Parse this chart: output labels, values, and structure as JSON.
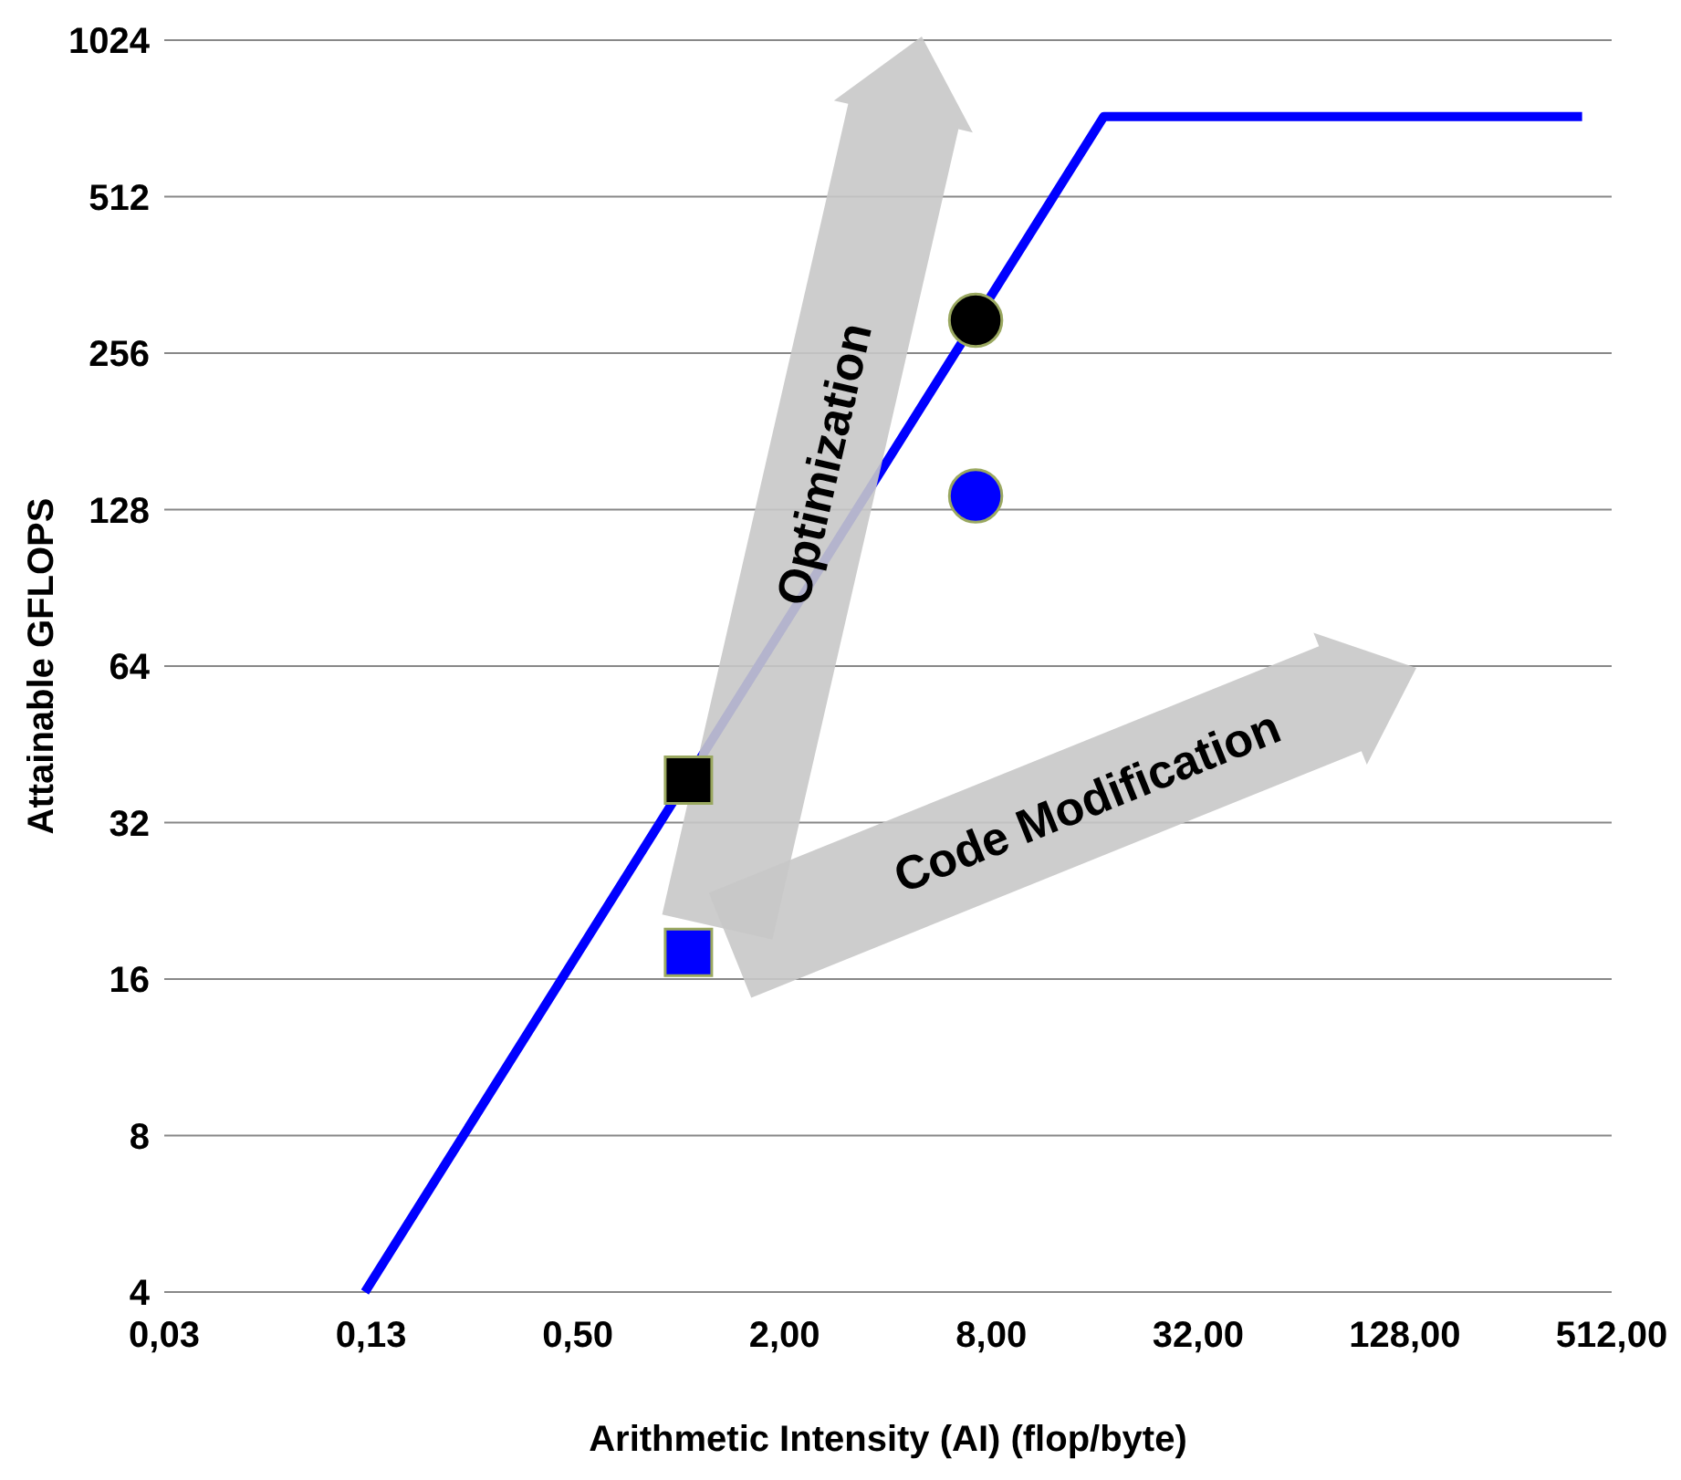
{
  "chart_data": {
    "type": "line",
    "xlabel": "Arithmetic Intensity (AI)  (flop/byte)",
    "ylabel": "Attainable GFLOPS",
    "log": "xy",
    "grid": "y",
    "xlim": [
      0.03125,
      512
    ],
    "xticks": [
      {
        "value": 0.03125,
        "label": "0,03"
      },
      {
        "value": 0.125,
        "label": "0,13"
      },
      {
        "value": 0.5,
        "label": "0,50"
      },
      {
        "value": 2,
        "label": "2,00"
      },
      {
        "value": 8,
        "label": "8,00"
      },
      {
        "value": 32,
        "label": "32,00"
      },
      {
        "value": 128,
        "label": "128,00"
      },
      {
        "value": 512,
        "label": "512,00"
      }
    ],
    "ylim": [
      4,
      1024
    ],
    "yticks": [
      4,
      8,
      16,
      32,
      64,
      128,
      256,
      512,
      1024
    ],
    "annotations": [
      "Optimization",
      "Code Modification"
    ],
    "series": [
      {
        "color": "#0000ff",
        "x": [
          0.12,
          17,
          420
        ],
        "values": [
          4,
          730,
          730
        ],
        "marker": "none",
        "line_style": "solid"
      },
      {
        "type": "scatter",
        "color": "#000000",
        "x": [
          1.05
        ],
        "values": [
          38.6
        ],
        "marker": "square"
      },
      {
        "type": "scatter",
        "color": "#000000",
        "x": [
          7.2
        ],
        "values": [
          296
        ],
        "marker": "circle"
      },
      {
        "type": "scatter",
        "color": "#0000ff",
        "x": [
          1.05
        ],
        "values": [
          18
        ],
        "marker": "square"
      },
      {
        "type": "scatter",
        "color": "#0000ff",
        "x": [
          7.2
        ],
        "values": [
          136
        ],
        "marker": "circle"
      }
    ]
  }
}
